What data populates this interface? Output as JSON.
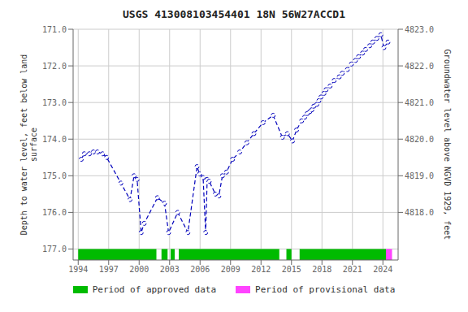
{
  "chart_data": {
    "type": "line",
    "title": "USGS 413008103454401  18N 56W27ACCD1",
    "y_label": "Depth to water level, feet below land\nsurface",
    "y2_label": "Groundwater level above NGVD 1929, feet",
    "x": [
      1994.3,
      1994.6,
      1995.1,
      1995.5,
      1995.9,
      1996.4,
      1996.8,
      1998.2,
      1999.1,
      1999.5,
      1999.8,
      2000.2,
      2000.5,
      2001.8,
      2002.5,
      2002.9,
      2003.8,
      2004.8,
      2005.7,
      2005.95,
      2006.3,
      2006.55,
      2006.7,
      2006.9,
      2007.5,
      2007.85,
      2008.2,
      2008.6,
      2009.2,
      2009.9,
      2010.6,
      2011.3,
      2012.2,
      2013.2,
      2014.1,
      2014.6,
      2015.1,
      2015.5,
      2016.0,
      2016.3,
      2016.55,
      2016.8,
      2017.0,
      2017.2,
      2017.5,
      2017.7,
      2017.9,
      2018.2,
      2018.4,
      2018.8,
      2019.2,
      2019.7,
      2020.0,
      2020.5,
      2020.9,
      2021.3,
      2021.6,
      2022.0,
      2022.3,
      2022.7,
      2023.0,
      2023.4,
      2023.8,
      2024.1,
      2024.5
    ],
    "values": [
      174.55,
      174.4,
      174.4,
      174.35,
      174.35,
      174.4,
      174.5,
      175.2,
      175.65,
      175.0,
      175.1,
      176.55,
      176.3,
      175.6,
      175.75,
      176.55,
      176.0,
      176.55,
      174.75,
      174.95,
      175.05,
      176.55,
      175.1,
      175.15,
      175.5,
      175.55,
      175.0,
      174.9,
      174.55,
      174.35,
      174.1,
      173.85,
      173.55,
      173.35,
      173.95,
      173.85,
      174.05,
      173.75,
      173.5,
      173.4,
      173.3,
      173.25,
      173.2,
      173.1,
      173.05,
      172.95,
      172.85,
      172.75,
      172.65,
      172.55,
      172.4,
      172.3,
      172.2,
      172.1,
      171.95,
      171.85,
      171.75,
      171.65,
      171.55,
      171.45,
      171.35,
      171.25,
      171.15,
      171.5,
      171.35
    ],
    "color": "#0000bb",
    "marker": "circle",
    "line_style": "dashed",
    "xlim": [
      1993.5,
      2025.5
    ],
    "xticks": [
      1994,
      1997,
      2000,
      2003,
      2006,
      2009,
      2012,
      2015,
      2018,
      2021,
      2024
    ],
    "ylim": [
      177.3,
      171.0
    ],
    "yticks": [
      {
        "value": 171.0,
        "label": "171.0"
      },
      {
        "value": 172.0,
        "label": "172.0"
      },
      {
        "value": 173.0,
        "label": "173.0"
      },
      {
        "value": 174.0,
        "label": "174.0"
      },
      {
        "value": 175.0,
        "label": "175.0"
      },
      {
        "value": 176.0,
        "label": "176.0"
      },
      {
        "value": 177.0,
        "label": "177.0"
      }
    ],
    "y2lim": [
      4816.7,
      4823.0
    ],
    "y2ticks": [
      {
        "value": 4818.0,
        "label": "4818.0"
      },
      {
        "value": 4819.0,
        "label": "4819.0"
      },
      {
        "value": 4820.0,
        "label": "4820.0"
      },
      {
        "value": 4821.0,
        "label": "4821.0"
      },
      {
        "value": 4822.0,
        "label": "4822.0"
      },
      {
        "value": 4823.0,
        "label": "4823.0"
      }
    ],
    "grid": true,
    "legend": "bottom",
    "periods": [
      {
        "name": "Period of approved data",
        "color": "#00bb00",
        "bottom": 177.0,
        "top": 177.3,
        "ranges": [
          [
            1994.0,
            2001.7
          ],
          [
            2002.2,
            2002.8
          ],
          [
            2003.1,
            2003.5
          ],
          [
            2003.9,
            2013.8
          ],
          [
            2014.5,
            2015.0
          ],
          [
            2015.8,
            2024.3
          ]
        ]
      },
      {
        "name": "Period of provisional data",
        "color": "#ff44ff",
        "bottom": 177.0,
        "top": 177.3,
        "ranges": [
          [
            2024.3,
            2024.9
          ]
        ]
      }
    ]
  }
}
